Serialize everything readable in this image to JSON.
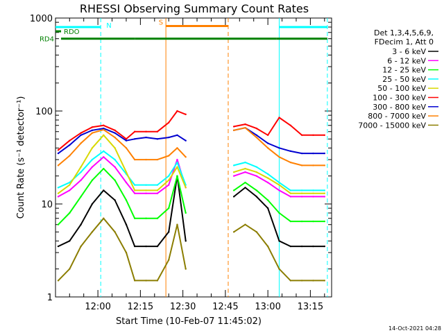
{
  "title": "RHESSI Observing Summary Count Rates",
  "timestamp": "14-Oct-2021 04:28",
  "legend_header": [
    "Det 1,3,4,5,6,9,",
    "FDecim 1, Att 0"
  ],
  "state_labels": {
    "rdo": "RDO",
    "rd4": "RD4",
    "n": "N",
    "s": "S"
  },
  "colors": {
    "3-6": "#000000",
    "6-12": "#ff00ff",
    "12-25": "#00ff00",
    "25-50": "#00ffff",
    "50-100": "#d8d800",
    "100-300": "#ff0000",
    "300-800": "#0000d0",
    "800-7000": "#ff8000",
    "7000-15000": "#8b7d00",
    "state_green": "#008000",
    "state_cyan": "#00ffff",
    "state_orange": "#ff8000"
  },
  "chart_data": {
    "type": "line",
    "title": "RHESSI Observing Summary Count Rates",
    "xlabel": "Start Time (10-Feb-07 11:45:02)",
    "ylabel": "Count Rate (s⁻¹ detector⁻¹)",
    "ylog": true,
    "ylim": [
      1,
      1000
    ],
    "xlim": [
      "11:45:02",
      "13:22:30"
    ],
    "x_ticks": [
      "12:00",
      "12:15",
      "12:30",
      "12:45",
      "13:00",
      "13:15"
    ],
    "y_ticks": [
      "1",
      "10",
      "100",
      "1000"
    ],
    "legend_position": "right",
    "x": [
      "11:46",
      "11:50",
      "11:54",
      "11:58",
      "12:02",
      "12:06",
      "12:10",
      "12:13",
      "12:17",
      "12:21",
      "12:25",
      "12:28",
      "12:31",
      "12:48",
      "12:52",
      "12:56",
      "13:00",
      "13:04",
      "13:08",
      "13:12",
      "13:16",
      "13:20"
    ],
    "series": [
      {
        "name": "3 - 6 keV",
        "values": [
          3.5,
          4,
          6,
          10,
          14,
          11,
          6,
          3.5,
          3.5,
          3.5,
          5,
          20,
          4,
          12,
          15,
          12,
          9,
          4,
          3.5,
          3.5,
          3.5,
          3.5
        ]
      },
      {
        "name": "6 - 12 keV",
        "values": [
          12,
          14,
          18,
          25,
          32,
          25,
          17,
          13,
          13,
          13,
          16,
          30,
          15,
          20,
          22,
          20,
          17,
          14,
          12,
          12,
          12,
          12
        ]
      },
      {
        "name": "12 - 25 keV",
        "values": [
          6,
          8,
          12,
          18,
          24,
          18,
          11,
          7,
          7,
          7,
          9,
          20,
          8,
          14,
          17,
          14,
          11,
          8,
          6.5,
          6.5,
          6.5,
          6.5
        ]
      },
      {
        "name": "25 - 50 keV",
        "values": [
          15,
          17,
          22,
          30,
          37,
          30,
          21,
          16,
          16,
          16,
          20,
          28,
          16,
          26,
          28,
          25,
          21,
          17,
          14,
          14,
          14,
          14
        ]
      },
      {
        "name": "50 - 100 keV",
        "values": [
          13,
          16,
          25,
          40,
          55,
          40,
          22,
          14,
          14,
          14,
          18,
          25,
          15,
          22,
          24,
          22,
          19,
          16,
          13,
          13,
          13,
          13
        ]
      },
      {
        "name": "100 - 300 keV",
        "values": [
          38,
          48,
          58,
          67,
          70,
          62,
          50,
          60,
          60,
          60,
          75,
          100,
          92,
          68,
          72,
          65,
          55,
          85,
          70,
          55,
          55,
          55
        ]
      },
      {
        "name": "300 - 800 keV",
        "values": [
          35,
          43,
          55,
          62,
          65,
          58,
          48,
          50,
          52,
          50,
          52,
          55,
          48,
          62,
          66,
          55,
          45,
          40,
          37,
          35,
          35,
          35
        ]
      },
      {
        "name": "800 - 7000 keV",
        "values": [
          26,
          33,
          45,
          58,
          63,
          52,
          40,
          30,
          30,
          30,
          33,
          40,
          32,
          62,
          66,
          52,
          40,
          32,
          28,
          26,
          26,
          26
        ]
      },
      {
        "name": "7000 - 15000 keV",
        "values": [
          1.5,
          2,
          3.5,
          5,
          7,
          5,
          3,
          1.5,
          1.5,
          1.5,
          2.5,
          6,
          2,
          5,
          6,
          5,
          3.5,
          2,
          1.5,
          1.5,
          1.5,
          1.5
        ]
      }
    ],
    "gaps": [
      [
        "12:32",
        "12:48"
      ]
    ],
    "vertical_markers": [
      {
        "time": "12:01",
        "color": "state_cyan",
        "style": "dashed"
      },
      {
        "time": "12:24",
        "color": "state_orange",
        "style": "solid"
      },
      {
        "time": "12:46",
        "color": "state_orange",
        "style": "dashed"
      },
      {
        "time": "13:04",
        "color": "state_cyan",
        "style": "solid"
      },
      {
        "time": "13:21",
        "color": "state_cyan",
        "style": "dashed"
      }
    ],
    "state_bars": [
      {
        "label": "N",
        "color": "state_cyan",
        "level": 800,
        "segments": [
          [
            "11:45:02",
            "12:01"
          ],
          [
            "13:04",
            "13:21"
          ]
        ]
      },
      {
        "label": "S",
        "color": "state_orange",
        "level": 820,
        "segments": [
          [
            "12:24",
            "12:46"
          ]
        ]
      },
      {
        "label": "RDO",
        "color": "state_green",
        "level": 720,
        "segments": [
          [
            "11:45:02",
            "11:47"
          ]
        ]
      },
      {
        "label": "RD4",
        "color": "state_green",
        "level": 600,
        "segments": [
          [
            "11:47",
            "12:13"
          ],
          [
            "12:13",
            "12:46"
          ],
          [
            "12:46",
            "13:03"
          ],
          [
            "13:03",
            "13:21"
          ]
        ]
      }
    ]
  }
}
